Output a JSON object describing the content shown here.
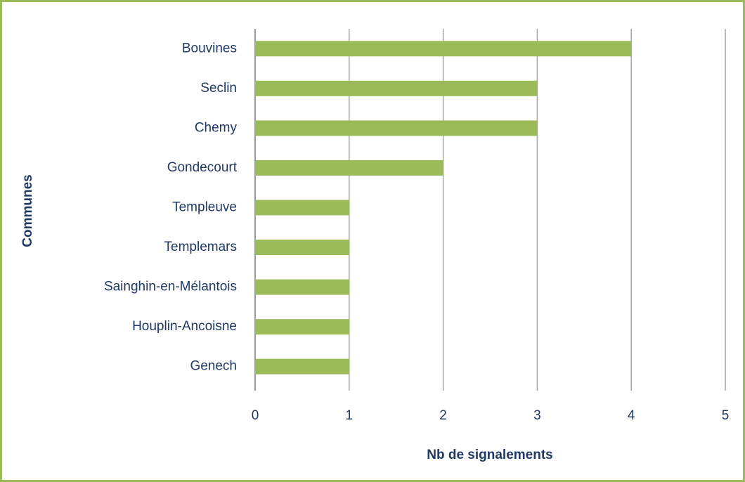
{
  "chart_data": {
    "type": "bar",
    "horizontal": true,
    "xlabel": "Nb de signalements",
    "ylabel": "Communes",
    "categories": [
      "Bouvines",
      "Seclin",
      "Chemy",
      "Gondecourt",
      "Templeuve",
      "Templemars",
      "Sainghin-en-Mélantois",
      "Houplin-Ancoisne",
      "Genech"
    ],
    "values": [
      4,
      3,
      3,
      2,
      1,
      1,
      1,
      1,
      1
    ],
    "color": "#9bbb59",
    "xlim": [
      0,
      5
    ],
    "xticks": [
      0,
      1,
      2,
      3,
      4,
      5
    ],
    "grid": true
  }
}
